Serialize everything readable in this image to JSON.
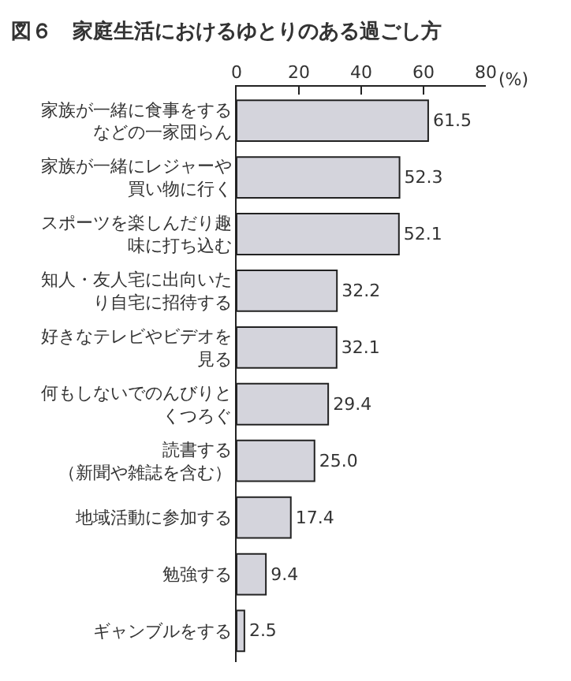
{
  "chart_data": {
    "type": "bar",
    "orientation": "horizontal",
    "title": "図６　家庭生活におけるゆとりのある過ごし方",
    "xlabel": "(%)",
    "categories": [
      "家族が一緒に食事をするなどの一家団らん",
      "家族が一緒にレジャーや買い物に行く",
      "スポーツを楽しんだり趣味に打ち込む",
      "知人・友人宅に出向いたり自宅に招待する",
      "好きなテレビやビデオを見る",
      "何もしないでのんびりとくつろぐ",
      "読書する（新聞や雑誌を含む）",
      "地域活動に参加する",
      "勉強する",
      "ギャンブルをする"
    ],
    "values": [
      61.5,
      52.3,
      52.1,
      32.2,
      32.1,
      29.4,
      25.0,
      17.4,
      9.4,
      2.5
    ],
    "value_labels": [
      "61.5",
      "52.3",
      "52.1",
      "32.2",
      "32.1",
      "29.4",
      "25.0",
      "17.4",
      "9.4",
      "2.5"
    ],
    "color": "#d4d4dc",
    "xlim": [
      0,
      80
    ],
    "xticks": [
      0,
      20,
      40,
      60,
      80
    ]
  }
}
